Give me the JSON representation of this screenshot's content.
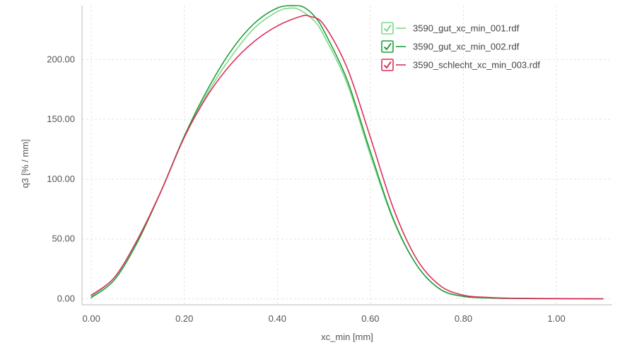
{
  "chart_data": {
    "type": "line",
    "xlabel": "xc_min [mm]",
    "ylabel": "q3 [% / mm]",
    "xlim": [
      -0.02,
      1.12
    ],
    "ylim": [
      -5,
      245
    ],
    "x_ticks": [
      0.0,
      0.2,
      0.4,
      0.6,
      0.8,
      1.0
    ],
    "x_tick_labels": [
      "0.00",
      "0.20",
      "0.40",
      "0.60",
      "0.80",
      "1.00"
    ],
    "y_ticks": [
      0,
      50,
      100,
      150,
      200
    ],
    "y_tick_labels": [
      "0.00",
      "50.00",
      "100.00",
      "150.00",
      "200.00"
    ],
    "grid": true,
    "legend_position": "top-right",
    "series": [
      {
        "name": "3590_gut_xc_min_001.rdf",
        "color": "#7fd88a",
        "checked": true,
        "x": [
          0.0,
          0.05,
          0.1,
          0.15,
          0.2,
          0.25,
          0.3,
          0.35,
          0.4,
          0.43,
          0.45,
          0.48,
          0.5,
          0.55,
          0.6,
          0.65,
          0.7,
          0.75,
          0.8,
          0.85,
          0.9,
          1.0,
          1.1
        ],
        "y": [
          2,
          18,
          50,
          90,
          135,
          172,
          202,
          226,
          240,
          243,
          241,
          232,
          220,
          180,
          120,
          65,
          28,
          8,
          2,
          0.8,
          0.3,
          0.1,
          0
        ]
      },
      {
        "name": "3590_gut_xc_min_002.rdf",
        "color": "#1e9e3a",
        "checked": true,
        "x": [
          0.0,
          0.05,
          0.1,
          0.15,
          0.2,
          0.25,
          0.3,
          0.35,
          0.4,
          0.44,
          0.46,
          0.48,
          0.5,
          0.55,
          0.6,
          0.65,
          0.7,
          0.75,
          0.8,
          0.85,
          0.9,
          1.0,
          1.1
        ],
        "y": [
          1,
          16,
          48,
          90,
          136,
          175,
          207,
          230,
          243,
          245,
          243,
          236,
          224,
          183,
          123,
          66,
          28,
          8,
          2,
          0.8,
          0.3,
          0.1,
          0
        ]
      },
      {
        "name": "3590_schlecht_xc_min_003.rdf",
        "color": "#dc2f5c",
        "checked": true,
        "x": [
          0.0,
          0.05,
          0.1,
          0.15,
          0.2,
          0.25,
          0.3,
          0.35,
          0.4,
          0.45,
          0.47,
          0.5,
          0.55,
          0.6,
          0.65,
          0.7,
          0.75,
          0.8,
          0.85,
          0.9,
          1.0,
          1.1
        ],
        "y": [
          3,
          18,
          50,
          90,
          135,
          170,
          196,
          215,
          228,
          236,
          236,
          229,
          193,
          135,
          75,
          33,
          11,
          3,
          1.2,
          0.5,
          0.2,
          0
        ]
      }
    ]
  }
}
